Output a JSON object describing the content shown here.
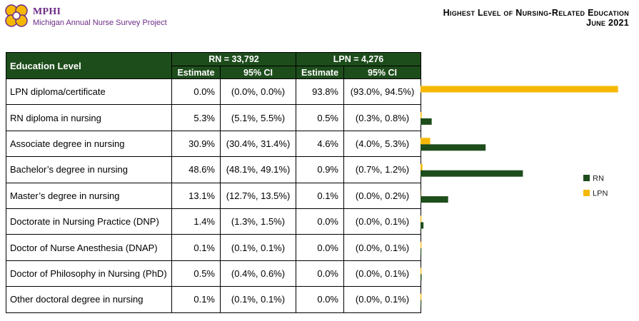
{
  "header": {
    "org": "MPHI",
    "project": "Michigan Annual Nurse Survey Project",
    "title_line1": "Highest Level of Nursing-Related Education",
    "title_line2": "June 2021"
  },
  "table": {
    "col_label": "Education Level",
    "rn_header": "RN = 33,792",
    "lpn_header": "LPN = 4,276",
    "estimate_label": "Estimate",
    "ci_label": "95% CI",
    "rows": [
      {
        "label": "LPN diploma/certificate",
        "rn_est": "0.0%",
        "rn_ci": "(0.0%, 0.0%)",
        "lpn_est": "93.8%",
        "lpn_ci": "(93.0%, 94.5%)"
      },
      {
        "label": "RN diploma in nursing",
        "rn_est": "5.3%",
        "rn_ci": "(5.1%, 5.5%)",
        "lpn_est": "0.5%",
        "lpn_ci": "(0.3%, 0.8%)"
      },
      {
        "label": "Associate degree in nursing",
        "rn_est": "30.9%",
        "rn_ci": "(30.4%, 31.4%)",
        "lpn_est": "4.6%",
        "lpn_ci": "(4.0%, 5.3%)"
      },
      {
        "label": "Bachelor’s degree in nursing",
        "rn_est": "48.6%",
        "rn_ci": "(48.1%, 49.1%)",
        "lpn_est": "0.9%",
        "lpn_ci": "(0.7%, 1.2%)"
      },
      {
        "label": "Master’s degree in nursing",
        "rn_est": "13.1%",
        "rn_ci": "(12.7%, 13.5%)",
        "lpn_est": "0.1%",
        "lpn_ci": "(0.0%, 0.2%)"
      },
      {
        "label": "Doctorate in Nursing Practice (DNP)",
        "rn_est": "1.4%",
        "rn_ci": "(1.3%, 1.5%)",
        "lpn_est": "0.0%",
        "lpn_ci": "(0.0%, 0.1%)"
      },
      {
        "label": "Doctor of Nurse Anesthesia (DNAP)",
        "rn_est": "0.1%",
        "rn_ci": "(0.1%, 0.1%)",
        "lpn_est": "0.0%",
        "lpn_ci": "(0.0%, 0.1%)"
      },
      {
        "label": "Doctor of Philosophy in Nursing (PhD)",
        "rn_est": "0.5%",
        "rn_ci": "(0.4%, 0.6%)",
        "lpn_est": "0.0%",
        "lpn_ci": "(0.0%, 0.1%)"
      },
      {
        "label": "Other doctoral degree in nursing",
        "rn_est": "0.1%",
        "rn_ci": "(0.1%, 0.1%)",
        "lpn_est": "0.0%",
        "lpn_ci": "(0.0%, 0.1%)"
      }
    ]
  },
  "colors": {
    "rn": "#1e4d1c",
    "lpn": "#f5b800",
    "header_bg": "#1e4d1c",
    "brand": "#6d2b86"
  },
  "chart_data": {
    "type": "bar",
    "orientation": "horizontal",
    "categories": [
      "LPN diploma/certificate",
      "RN diploma in nursing",
      "Associate degree in nursing",
      "Bachelor’s degree in nursing",
      "Master’s degree in nursing",
      "Doctorate in Nursing Practice (DNP)",
      "Doctor of Nurse Anesthesia (DNAP)",
      "Doctor of Philosophy in Nursing (PhD)",
      "Other doctoral degree in nursing"
    ],
    "series": [
      {
        "name": "RN",
        "values": [
          0.0,
          5.3,
          30.9,
          48.6,
          13.1,
          1.4,
          0.1,
          0.5,
          0.1
        ]
      },
      {
        "name": "LPN",
        "values": [
          93.8,
          0.5,
          4.6,
          0.9,
          0.1,
          0.0,
          0.0,
          0.0,
          0.0
        ]
      }
    ],
    "xlim": [
      0,
      100
    ],
    "legend": "right",
    "title": "",
    "xlabel": "",
    "ylabel": ""
  }
}
